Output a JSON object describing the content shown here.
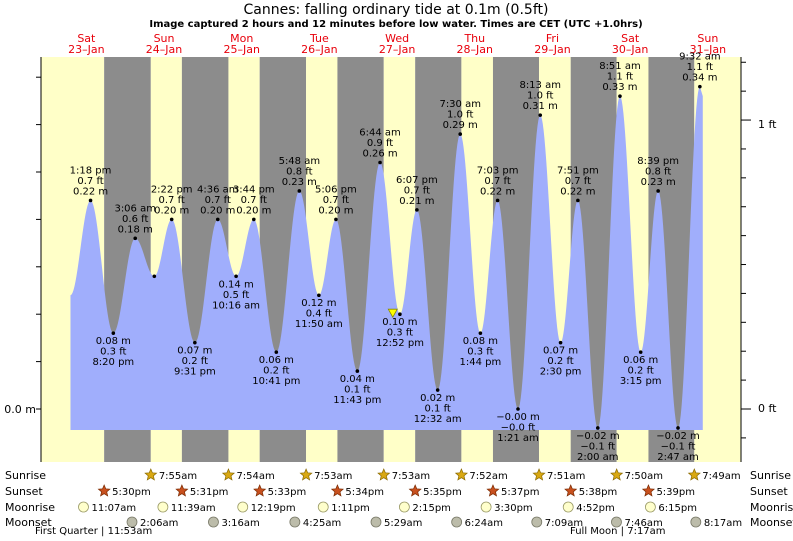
{
  "title": "Cannes: falling  ordinary tide at 0.1m (0.5ft)",
  "subtitle": "Image captured 2 hours and 12 minutes before low water. Times are CET (UTC +1.0hrs)",
  "y_axis": {
    "left_label": "0.0 m",
    "right_ticks": [
      "1 ft",
      "0 ft"
    ]
  },
  "colors": {
    "day": "#ffffc8",
    "night": "#8c8c8c",
    "tide": "#a0aefc",
    "date": "#e8000b",
    "axis": "#000000"
  },
  "days": [
    {
      "name": "Sat",
      "date": "23–Jan"
    },
    {
      "name": "Sun",
      "date": "24–Jan"
    },
    {
      "name": "Mon",
      "date": "25–Jan"
    },
    {
      "name": "Tue",
      "date": "26–Jan"
    },
    {
      "name": "Wed",
      "date": "27–Jan"
    },
    {
      "name": "Thu",
      "date": "28–Jan"
    },
    {
      "name": "Fri",
      "date": "29–Jan"
    },
    {
      "name": "Sat",
      "date": "30–Jan"
    },
    {
      "name": "Sun",
      "date": "31–Jan"
    }
  ],
  "chart_data": {
    "type": "area",
    "title": "Cannes: falling  ordinary tide at 0.1m (0.5ft)",
    "ylabel": "",
    "ylim_m": [
      -0.04,
      0.36
    ],
    "current": {
      "height_m": 0.1,
      "time": "27-Jan 10:40"
    },
    "extremes": [
      {
        "t": "23-Jan 13:18",
        "time": "1:18 pm",
        "m": 0.22,
        "m_label": "0.22 m",
        "ft_label": "0.7 ft",
        "type": "high"
      },
      {
        "t": "23-Jan 20:20",
        "time": "8:20 pm",
        "m": 0.08,
        "m_label": "0.08 m",
        "ft_label": "0.3 ft",
        "type": "low"
      },
      {
        "t": "24-Jan 03:06",
        "time": "3:06 am",
        "m": 0.18,
        "m_label": "0.18 m",
        "ft_label": "0.6 ft",
        "type": "high"
      },
      {
        "t": "24-Jan 09:00",
        "time": "",
        "m": 0.14,
        "m_label": "",
        "ft_label": "",
        "type": "low"
      },
      {
        "t": "24-Jan 14:22",
        "time": "2:22 pm",
        "m": 0.2,
        "m_label": "0.20 m",
        "ft_label": "0.7 ft",
        "type": "high"
      },
      {
        "t": "24-Jan 21:31",
        "time": "9:31 pm",
        "m": 0.07,
        "m_label": "0.07 m",
        "ft_label": "0.2 ft",
        "type": "low"
      },
      {
        "t": "25-Jan 04:36",
        "time": "4:36 am",
        "m": 0.2,
        "m_label": "0.20 m",
        "ft_label": "0.7 ft",
        "type": "high"
      },
      {
        "t": "25-Jan 10:16",
        "time": "10:16 am",
        "m": 0.14,
        "m_label": "0.14 m",
        "ft_label": "0.5 ft",
        "type": "low"
      },
      {
        "t": "25-Jan 15:44",
        "time": "3:44 pm",
        "m": 0.2,
        "m_label": "0.20 m",
        "ft_label": "0.7 ft",
        "type": "high"
      },
      {
        "t": "25-Jan 22:41",
        "time": "10:41 pm",
        "m": 0.06,
        "m_label": "0.06 m",
        "ft_label": "0.2 ft",
        "type": "low"
      },
      {
        "t": "26-Jan 05:48",
        "time": "5:48 am",
        "m": 0.23,
        "m_label": "0.23 m",
        "ft_label": "0.8 ft",
        "type": "high"
      },
      {
        "t": "26-Jan 11:50",
        "time": "11:50 am",
        "m": 0.12,
        "m_label": "0.12 m",
        "ft_label": "0.4 ft",
        "type": "low"
      },
      {
        "t": "26-Jan 17:06",
        "time": "5:06 pm",
        "m": 0.2,
        "m_label": "0.20 m",
        "ft_label": "0.7 ft",
        "type": "high"
      },
      {
        "t": "26-Jan 23:43",
        "time": "11:43 pm",
        "m": 0.04,
        "m_label": "0.04 m",
        "ft_label": "0.1 ft",
        "type": "low"
      },
      {
        "t": "27-Jan 06:44",
        "time": "6:44 am",
        "m": 0.26,
        "m_label": "0.26 m",
        "ft_label": "0.9 ft",
        "type": "high"
      },
      {
        "t": "27-Jan 12:52",
        "time": "12:52 pm",
        "m": 0.1,
        "m_label": "0.10 m",
        "ft_label": "0.3 ft",
        "type": "low"
      },
      {
        "t": "27-Jan 18:07",
        "time": "6:07 pm",
        "m": 0.21,
        "m_label": "0.21 m",
        "ft_label": "0.7 ft",
        "type": "high"
      },
      {
        "t": "28-Jan 00:32",
        "time": "12:32 am",
        "m": 0.02,
        "m_label": "0.02 m",
        "ft_label": "0.1 ft",
        "type": "low"
      },
      {
        "t": "28-Jan 07:30",
        "time": "7:30 am",
        "m": 0.29,
        "m_label": "0.29 m",
        "ft_label": "1.0 ft",
        "type": "high"
      },
      {
        "t": "28-Jan 13:44",
        "time": "1:44 pm",
        "m": 0.08,
        "m_label": "0.08 m",
        "ft_label": "0.3 ft",
        "type": "low"
      },
      {
        "t": "28-Jan 19:03",
        "time": "7:03 pm",
        "m": 0.22,
        "m_label": "0.22 m",
        "ft_label": "0.7 ft",
        "type": "high"
      },
      {
        "t": "29-Jan 01:21",
        "time": "1:21 am",
        "m": -0.0,
        "m_label": "−0.00 m",
        "ft_label": "−0.0 ft",
        "type": "low"
      },
      {
        "t": "29-Jan 08:13",
        "time": "8:13 am",
        "m": 0.31,
        "m_label": "0.31 m",
        "ft_label": "1.0 ft",
        "type": "high"
      },
      {
        "t": "29-Jan 14:30",
        "time": "2:30 pm",
        "m": 0.07,
        "m_label": "0.07 m",
        "ft_label": "0.2 ft",
        "type": "low"
      },
      {
        "t": "29-Jan 19:51",
        "time": "7:51 pm",
        "m": 0.22,
        "m_label": "0.22 m",
        "ft_label": "0.7 ft",
        "type": "high"
      },
      {
        "t": "30-Jan 02:00",
        "time": "2:00 am",
        "m": -0.02,
        "m_label": "−0.02 m",
        "ft_label": "−0.1 ft",
        "type": "low"
      },
      {
        "t": "30-Jan 08:51",
        "time": "8:51 am",
        "m": 0.33,
        "m_label": "0.33 m",
        "ft_label": "1.1 ft",
        "type": "high"
      },
      {
        "t": "30-Jan 15:15",
        "time": "3:15 pm",
        "m": 0.06,
        "m_label": "0.06 m",
        "ft_label": "0.2 ft",
        "type": "low"
      },
      {
        "t": "30-Jan 20:39",
        "time": "8:39 pm",
        "m": 0.23,
        "m_label": "0.23 m",
        "ft_label": "0.8 ft",
        "type": "high"
      },
      {
        "t": "31-Jan 02:47",
        "time": "2:47 am",
        "m": -0.02,
        "m_label": "−0.02 m",
        "ft_label": "−0.1 ft",
        "type": "low"
      },
      {
        "t": "31-Jan 09:32",
        "time": "9:32 am",
        "m": 0.34,
        "m_label": "0.34 m",
        "ft_label": "1.1 ft",
        "type": "high"
      }
    ]
  },
  "astro": {
    "row_labels": [
      "Sunrise",
      "Sunset",
      "Moonrise",
      "Moonset"
    ],
    "sunrise": [
      {
        "t": "24-Jan 07:55",
        "label": "7:55am"
      },
      {
        "t": "25-Jan 07:54",
        "label": "7:54am"
      },
      {
        "t": "26-Jan 07:53",
        "label": "7:53am"
      },
      {
        "t": "27-Jan 07:53",
        "label": "7:53am"
      },
      {
        "t": "28-Jan 07:52",
        "label": "7:52am"
      },
      {
        "t": "29-Jan 07:51",
        "label": "7:51am"
      },
      {
        "t": "30-Jan 07:50",
        "label": "7:50am"
      },
      {
        "t": "31-Jan 07:49",
        "label": "7:49am"
      }
    ],
    "sunset": [
      {
        "t": "23-Jan 17:30",
        "label": "5:30pm"
      },
      {
        "t": "24-Jan 17:31",
        "label": "5:31pm"
      },
      {
        "t": "25-Jan 17:33",
        "label": "5:33pm"
      },
      {
        "t": "26-Jan 17:34",
        "label": "5:34pm"
      },
      {
        "t": "27-Jan 17:35",
        "label": "5:35pm"
      },
      {
        "t": "28-Jan 17:37",
        "label": "5:37pm"
      },
      {
        "t": "29-Jan 17:38",
        "label": "5:38pm"
      },
      {
        "t": "30-Jan 17:39",
        "label": "5:39pm"
      }
    ],
    "moonrise": [
      {
        "t": "23-Jan 11:07",
        "label": "11:07am"
      },
      {
        "t": "24-Jan 11:39",
        "label": "11:39am"
      },
      {
        "t": "25-Jan 12:19",
        "label": "12:19pm"
      },
      {
        "t": "26-Jan 13:11",
        "label": "1:11pm"
      },
      {
        "t": "27-Jan 14:15",
        "label": "2:15pm"
      },
      {
        "t": "28-Jan 15:30",
        "label": "3:30pm"
      },
      {
        "t": "29-Jan 16:52",
        "label": "4:52pm"
      },
      {
        "t": "30-Jan 18:15",
        "label": "6:15pm"
      }
    ],
    "moonset": [
      {
        "t": "24-Jan 02:06",
        "label": "2:06am"
      },
      {
        "t": "25-Jan 03:16",
        "label": "3:16am"
      },
      {
        "t": "26-Jan 04:25",
        "label": "4:25am"
      },
      {
        "t": "27-Jan 05:29",
        "label": "5:29am"
      },
      {
        "t": "28-Jan 06:24",
        "label": "6:24am"
      },
      {
        "t": "29-Jan 07:09",
        "label": "7:09am"
      },
      {
        "t": "30-Jan 07:46",
        "label": "7:46am"
      },
      {
        "t": "31-Jan 08:17",
        "label": "8:17am"
      }
    ],
    "moon_phases": [
      {
        "t": "23-Jan 11:53",
        "label": "First Quarter | 11:53am"
      },
      {
        "t": "29-Jan 07:17",
        "label": "Full Moon | 7:17am"
      }
    ]
  }
}
